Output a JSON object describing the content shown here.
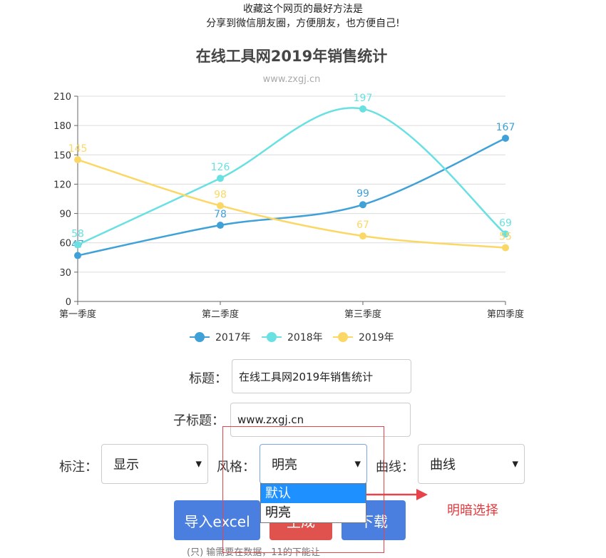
{
  "notice": {
    "line1": "收藏这个网页的最好方法是",
    "line2": "分享到微信朋友圈，方便朋友，也方便自己!"
  },
  "chart_data": {
    "type": "line",
    "title": "在线工具网2019年销售统计",
    "subtitle": "www.zxgj.cn",
    "categories": [
      "第一季度",
      "第二季度",
      "第三季度",
      "第四季度"
    ],
    "ylim": [
      0,
      210
    ],
    "yticks": [
      0,
      30,
      60,
      90,
      120,
      150,
      180,
      210
    ],
    "grid": true,
    "smooth": true,
    "legend_position": "bottom",
    "series": [
      {
        "name": "2017年",
        "color": "#3fa1d8",
        "values": [
          47,
          78,
          99,
          167
        ]
      },
      {
        "name": "2018年",
        "color": "#69e0e2",
        "values": [
          58,
          126,
          197,
          69
        ]
      },
      {
        "name": "2019年",
        "color": "#fbd866",
        "values": [
          145,
          98,
          67,
          55
        ]
      }
    ]
  },
  "form": {
    "title_label": "标题：",
    "title_value": "在线工具网2019年销售统计",
    "subtitle_label": "子标题：",
    "subtitle_value": "www.zxgj.cn",
    "annotation_label": "标注：",
    "annotation_value": "显示",
    "style_label": "风格：",
    "style_value": "明亮",
    "curve_label": "曲线：",
    "curve_value": "曲线",
    "caret": "▼"
  },
  "dropdown": {
    "options": [
      "默认",
      "明亮"
    ],
    "highlighted": 0
  },
  "buttons": {
    "import": "导入excel",
    "generate": "生成",
    "download": "下载"
  },
  "annotation_note": "明暗选择",
  "bottom_text": "(只)         输需要在数据，11的下能让"
}
